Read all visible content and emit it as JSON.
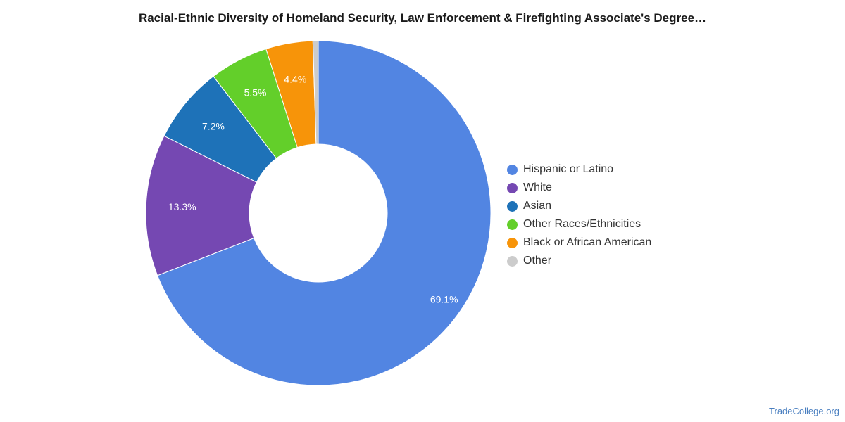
{
  "chart_data": {
    "type": "pie",
    "variant": "donut",
    "title": "Racial-Ethnic Diversity of Homeland Security, Law Enforcement & Firefighting Associate's Degree…",
    "slices": [
      {
        "label": "Hispanic or Latino",
        "value": 69.1,
        "display": "69.1%",
        "color": "#5285e2"
      },
      {
        "label": "White",
        "value": 13.3,
        "display": "13.3%",
        "color": "#7548b2"
      },
      {
        "label": "Asian",
        "value": 7.2,
        "display": "7.2%",
        "color": "#1e72b8"
      },
      {
        "label": "Other Races/Ethnicities",
        "value": 5.5,
        "display": "5.5%",
        "color": "#63cf2a"
      },
      {
        "label": "Black or African American",
        "value": 4.4,
        "display": "4.4%",
        "color": "#f79409"
      },
      {
        "label": "Other",
        "value": 0.5,
        "display": "",
        "color": "#cccccc"
      }
    ],
    "legend_position": "right"
  },
  "watermark": "TradeCollege.org"
}
